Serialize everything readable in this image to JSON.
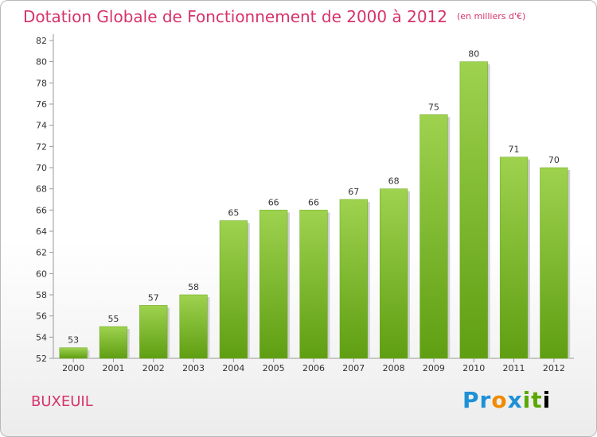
{
  "title": "Dotation Globale de Fonctionnement de 2000 à 2012",
  "unit": "(en milliers d'€)",
  "commune": "BUXEUIL",
  "logo_text": "Proxiti",
  "colors": {
    "bar_top": "#9ed24f",
    "bar_bottom": "#5f9e12",
    "title": "#d6336c"
  },
  "chart_data": {
    "type": "bar",
    "title": "Dotation Globale de Fonctionnement de 2000 à 2012",
    "subtitle": "(en milliers d'€)",
    "categories": [
      "2000",
      "2001",
      "2002",
      "2003",
      "2004",
      "2005",
      "2006",
      "2007",
      "2008",
      "2009",
      "2010",
      "2011",
      "2012"
    ],
    "values": [
      53,
      55,
      57,
      58,
      65,
      66,
      66,
      67,
      68,
      75,
      80,
      71,
      70
    ],
    "ylim": [
      52,
      82
    ],
    "yticks": [
      52,
      54,
      56,
      58,
      60,
      62,
      64,
      66,
      68,
      70,
      72,
      74,
      76,
      78,
      80,
      82
    ],
    "xlabel": "",
    "ylabel": "",
    "grid": false
  }
}
